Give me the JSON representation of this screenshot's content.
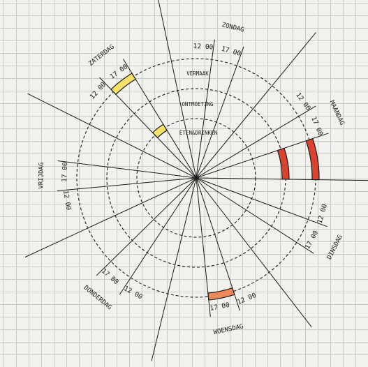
{
  "days": [
    {
      "name": "ZONDAG",
      "time_12": "12 00",
      "time_17": "17 00"
    },
    {
      "name": "MAANDAG",
      "time_12": "12 00",
      "time_17": "17 00"
    },
    {
      "name": "DINSDAG",
      "time_12": "12 00",
      "time_17": "17 00"
    },
    {
      "name": "WOENSDAG",
      "time_12": "12 00",
      "time_17": "17 00"
    },
    {
      "name": "DONDERDAG",
      "time_12": "12 00",
      "time_17": "17 00"
    },
    {
      "name": "VRIJDAG",
      "time_12": "12 00",
      "time_17": "17 00"
    },
    {
      "name": "ZATERDAG",
      "time_12": "12 00",
      "time_17": "17 00"
    }
  ],
  "rings": [
    {
      "label": "ETEN&DRINKEN"
    },
    {
      "label": "ONTMOETING"
    },
    {
      "label": "VERMAAK"
    }
  ],
  "colors": {
    "yellow": "#f7e169",
    "red": "#d9432f",
    "orange": "#ee8a5a",
    "line": "#1a1a1a"
  },
  "blocks": [
    {
      "day": "ZATERDAG",
      "from": "12 00",
      "to": "17 00",
      "ring": "ETEN&DRINKEN",
      "color": "yellow"
    },
    {
      "day": "ZATERDAG",
      "from": "12 00",
      "to": "17 00",
      "ring": "VERMAAK",
      "color": "yellow"
    },
    {
      "day": "MAANDAG",
      "from": "17 00",
      "to": "24 00",
      "ring": "ONTMOETING",
      "color": "red"
    },
    {
      "day": "MAANDAG",
      "from": "17 00",
      "to": "24 00",
      "ring": "VERMAAK",
      "color": "red"
    },
    {
      "day": "WOENSDAG",
      "from": "12 00",
      "to": "17 00",
      "ring": "VERMAAK",
      "color": "orange"
    }
  ]
}
